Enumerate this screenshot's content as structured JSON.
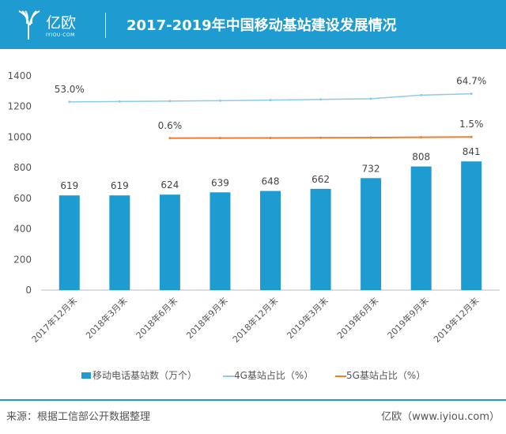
{
  "header": {
    "logo_text": "亿欧",
    "logo_sub": "IYIOU·COM",
    "title": "2017-2019年中国移动基站建设发展情况"
  },
  "colors": {
    "header": "#1e9bd1",
    "bar": "#1e9bd1",
    "line4g": "#8ccbe6",
    "line5g": "#ed7d31"
  },
  "chart_data": {
    "type": "bar",
    "categories": [
      "2017年12月末",
      "2018年3月末",
      "2018年6月末",
      "2018年9月末",
      "2018年12月末",
      "2019年3月末",
      "2019年6月末",
      "2019年9月末",
      "2019年12月末"
    ],
    "ylim": [
      0,
      1400
    ],
    "yticks": [
      0,
      200,
      400,
      600,
      800,
      1000,
      1200,
      1400
    ],
    "series": [
      {
        "name": "移动电话基站数（万个）",
        "type": "bar",
        "values": [
          619,
          619,
          624,
          639,
          648,
          662,
          732,
          808,
          841
        ]
      },
      {
        "name": "4G基站占比（%）",
        "type": "line",
        "axis": "secondary",
        "values": [
          53.0,
          53.6,
          54.2,
          54.8,
          55.6,
          56.6,
          57.6,
          62.8,
          64.7
        ],
        "labels": {
          "0": "53.0%",
          "8": "64.7%"
        }
      },
      {
        "name": "5G基站占比（%）",
        "type": "line",
        "axis": "secondary",
        "values": [
          null,
          null,
          0.6,
          0.7,
          0.8,
          0.9,
          1.0,
          1.3,
          1.5
        ],
        "labels": {
          "2": "0.6%",
          "8": "1.5%"
        }
      }
    ]
  },
  "footer": {
    "source": "来源：根据工信部公开数据整理",
    "credit": "亿欧（www.iyiou.com）"
  }
}
